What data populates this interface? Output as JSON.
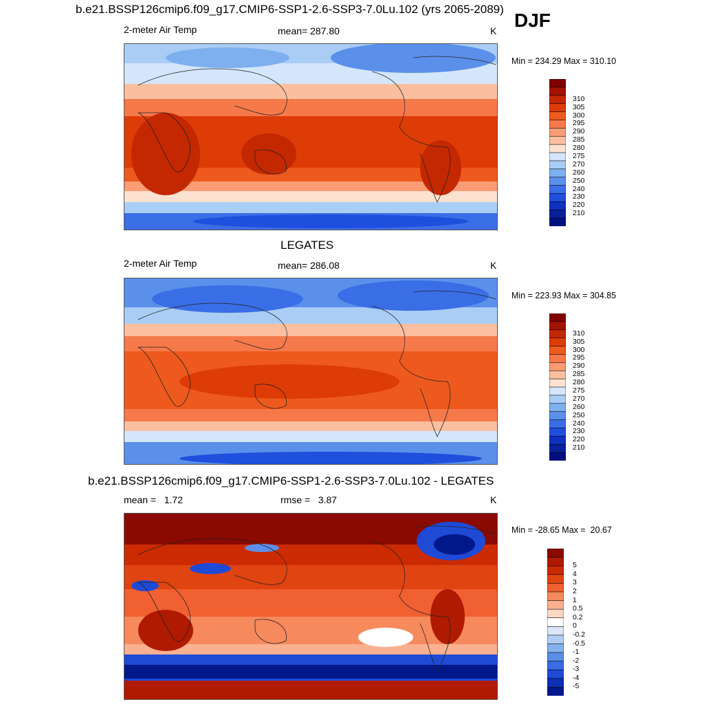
{
  "season": "DJF",
  "panels": [
    {
      "title": "b.e21.BSSP126cmip6.f09_g17.CMIP6-SSP1-2.6-SSP3-7.0Lu.102 (yrs 2065-2089)",
      "left_label": "2-meter Air Temp",
      "center_label": "mean= 287.80",
      "units": "K",
      "minmax": "Min = 234.29 Max = 310.10"
    },
    {
      "title": "LEGATES",
      "left_label": "2-meter Air Temp",
      "center_label": "mean= 286.08",
      "units": "K",
      "minmax": "Min = 223.93 Max = 304.85"
    },
    {
      "title": "b.e21.BSSP126cmip6.f09_g17.CMIP6-SSP1-2.6-SSP3-7.0Lu.102 - LEGATES",
      "left_label": "mean =   1.72",
      "center_label": "rmse =   3.87",
      "units": "K",
      "minmax": "Min = -28.65 Max =  20.67"
    }
  ],
  "temp_colorbar": {
    "labels": [
      "310",
      "305",
      "300",
      "295",
      "290",
      "285",
      "280",
      "275",
      "270",
      "260",
      "250",
      "240",
      "230",
      "220",
      "210"
    ],
    "colors": [
      "#800000",
      "#a31400",
      "#c42800",
      "#dd3c06",
      "#ee5a1e",
      "#f6794a",
      "#fa9c74",
      "#fbbfa0",
      "#fde2d0",
      "#d4e6fb",
      "#aacdf5",
      "#7eb0ef",
      "#5a90ea",
      "#3a6ee6",
      "#1f4fdd",
      "#1030c0",
      "#08209a",
      "#001080"
    ]
  },
  "diff_colorbar": {
    "labels": [
      "5",
      "4",
      "3",
      "2",
      "1",
      "0.5",
      "0.2",
      "0",
      "-0.2",
      "-0.5",
      "-1",
      "-2",
      "-3",
      "-4",
      "-5"
    ],
    "colors": [
      "#8a0a00",
      "#b01a00",
      "#cc2a00",
      "#e04410",
      "#f06030",
      "#f68a5c",
      "#fbb090",
      "#fdd8c4",
      "#ffffff",
      "#dbe8fa",
      "#b0cef3",
      "#86b0ee",
      "#5c8ee9",
      "#3a6ce3",
      "#1e4ad6",
      "#0f2fb4",
      "#00188a"
    ]
  }
}
